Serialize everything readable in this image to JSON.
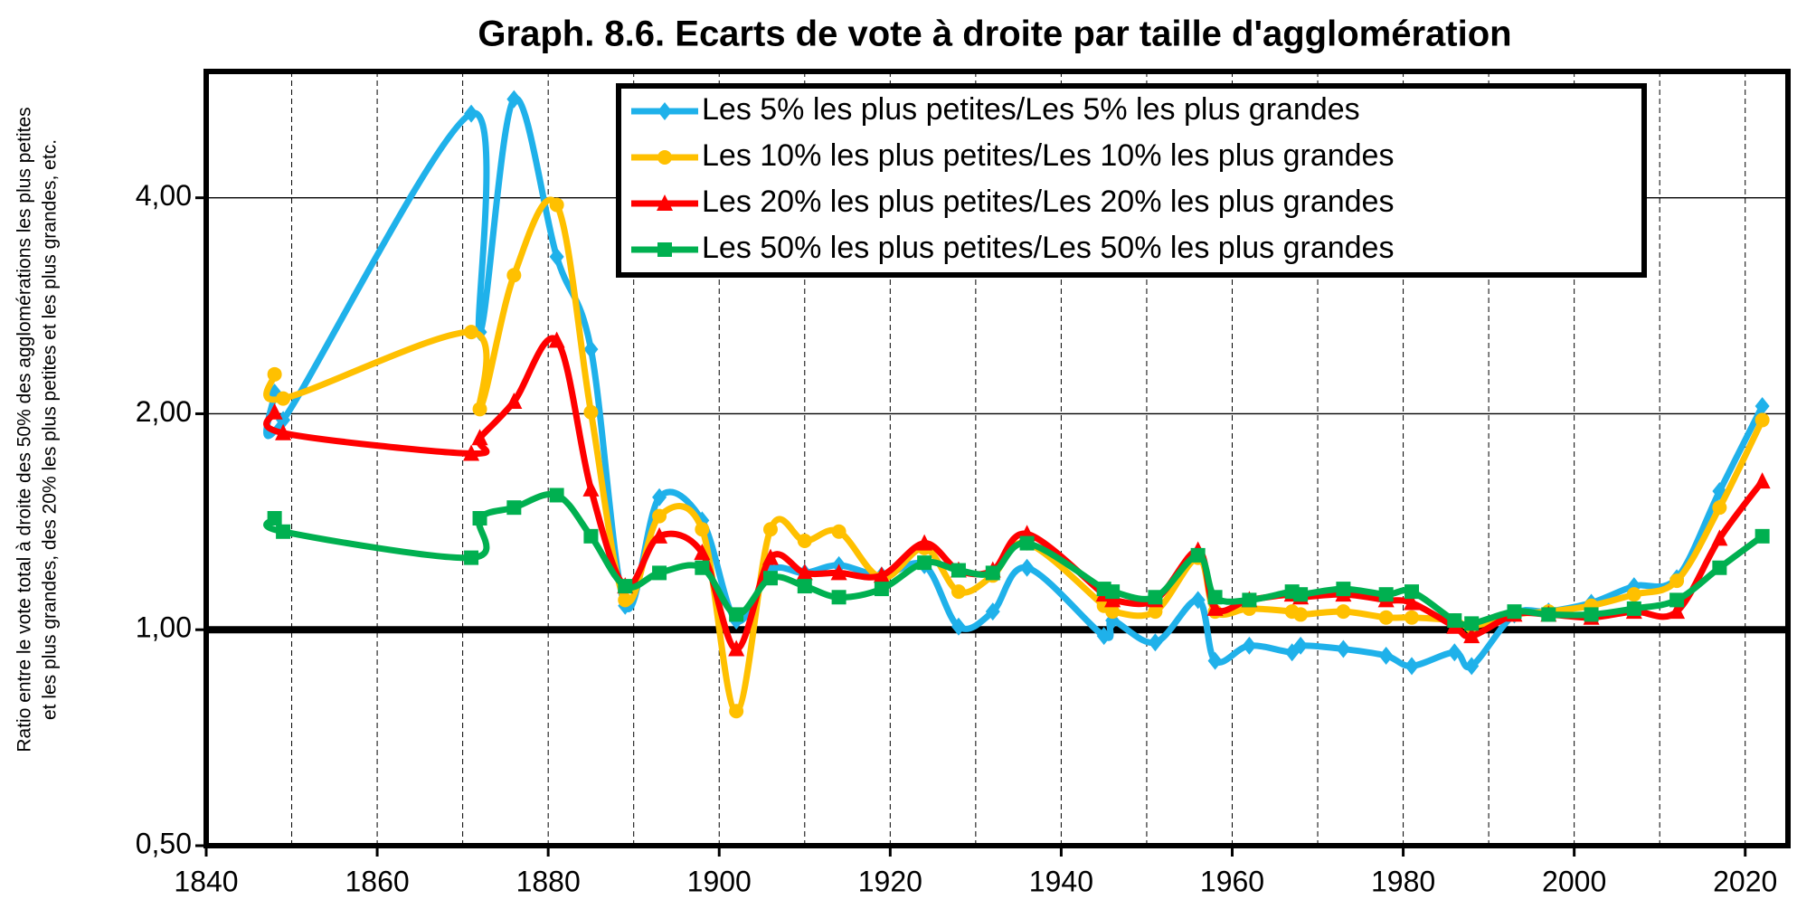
{
  "chart_data": {
    "type": "line",
    "title": "Graph. 8.6. Ecarts de vote à droite par taille d'agglomération",
    "ylabel": [
      "Ratio entre le vote total à droite des 50% des agglomérations les plus petites",
      "et les plus grandes, des 20% les plus petites et les plus grandes, etc."
    ],
    "x": [
      1848,
      1849,
      1871,
      1872,
      1876,
      1881,
      1885,
      1889,
      1893,
      1898,
      1902,
      1906,
      1910,
      1914,
      1919,
      1924,
      1928,
      1932,
      1936,
      1945,
      1946,
      1951,
      1956,
      1958,
      1962,
      1967,
      1968,
      1973,
      1978,
      1981,
      1986,
      1988,
      1993,
      1997,
      2002,
      2007,
      2012,
      2017,
      2022
    ],
    "series": [
      {
        "name": "Les 5% les plus petites/Les 5% les plus grandes",
        "color": "#1fb1ea",
        "marker": "diamond",
        "values": [
          2.14,
          1.96,
          5.24,
          2.6,
          5.49,
          3.31,
          2.46,
          1.08,
          1.53,
          1.42,
          1.03,
          1.21,
          1.2,
          1.23,
          1.19,
          1.23,
          1.01,
          1.06,
          1.22,
          0.98,
          1.03,
          0.96,
          1.1,
          0.905,
          0.95,
          0.93,
          0.95,
          0.94,
          0.92,
          0.89,
          0.93,
          0.89,
          1.05,
          1.06,
          1.09,
          1.15,
          1.18,
          1.56,
          2.05
        ]
      },
      {
        "name": "Les 10% les plus petites/Les 10% les plus grandes",
        "color": "#ffc000",
        "marker": "circle",
        "values": [
          2.27,
          2.1,
          2.6,
          2.03,
          3.12,
          3.91,
          2.01,
          1.1,
          1.44,
          1.38,
          0.77,
          1.38,
          1.33,
          1.37,
          1.18,
          1.3,
          1.13,
          1.19,
          1.32,
          1.08,
          1.06,
          1.06,
          1.26,
          1.06,
          1.07,
          1.06,
          1.05,
          1.06,
          1.04,
          1.04,
          1.03,
          1.01,
          1.05,
          1.06,
          1.08,
          1.12,
          1.17,
          1.48,
          1.96
        ]
      },
      {
        "name": "Les 20% les plus petites/Les 20% les plus grandes",
        "color": "#ff0000",
        "marker": "triangle",
        "values": [
          2.01,
          1.88,
          1.76,
          1.85,
          2.08,
          2.53,
          1.57,
          1.15,
          1.35,
          1.28,
          0.94,
          1.26,
          1.2,
          1.2,
          1.19,
          1.32,
          1.21,
          1.21,
          1.36,
          1.12,
          1.1,
          1.1,
          1.29,
          1.07,
          1.1,
          1.12,
          1.11,
          1.12,
          1.1,
          1.09,
          1.01,
          0.98,
          1.05,
          1.05,
          1.04,
          1.06,
          1.06,
          1.34,
          1.61
        ]
      },
      {
        "name": "Les 50% les plus petites/Les 50% les plus grandes",
        "color": "#00b050",
        "marker": "square",
        "values": [
          1.43,
          1.37,
          1.26,
          1.43,
          1.48,
          1.54,
          1.35,
          1.15,
          1.2,
          1.22,
          1.05,
          1.18,
          1.15,
          1.11,
          1.14,
          1.24,
          1.21,
          1.2,
          1.32,
          1.14,
          1.13,
          1.11,
          1.27,
          1.11,
          1.1,
          1.13,
          1.12,
          1.14,
          1.12,
          1.13,
          1.03,
          1.02,
          1.06,
          1.05,
          1.05,
          1.07,
          1.1,
          1.22,
          1.35
        ]
      }
    ],
    "xlim": [
      1840,
      2025
    ],
    "xticks": [
      1840,
      1860,
      1880,
      1900,
      1920,
      1940,
      1960,
      1980,
      2000,
      2020
    ],
    "xgrid": [
      1850,
      1860,
      1870,
      1880,
      1890,
      1900,
      1910,
      1920,
      1930,
      1940,
      1950,
      1960,
      1970,
      1980,
      1990,
      2000,
      2010,
      2020
    ],
    "ylim": [
      0.5,
      6.0
    ],
    "yscale": "log",
    "yticks": [
      {
        "value": 0.5,
        "label": "0,50"
      },
      {
        "value": 1,
        "label": "1,00"
      },
      {
        "value": 2,
        "label": "2,00"
      },
      {
        "value": 4,
        "label": "4,00"
      }
    ],
    "hline": 1,
    "grid": true,
    "legend": "top-right"
  }
}
